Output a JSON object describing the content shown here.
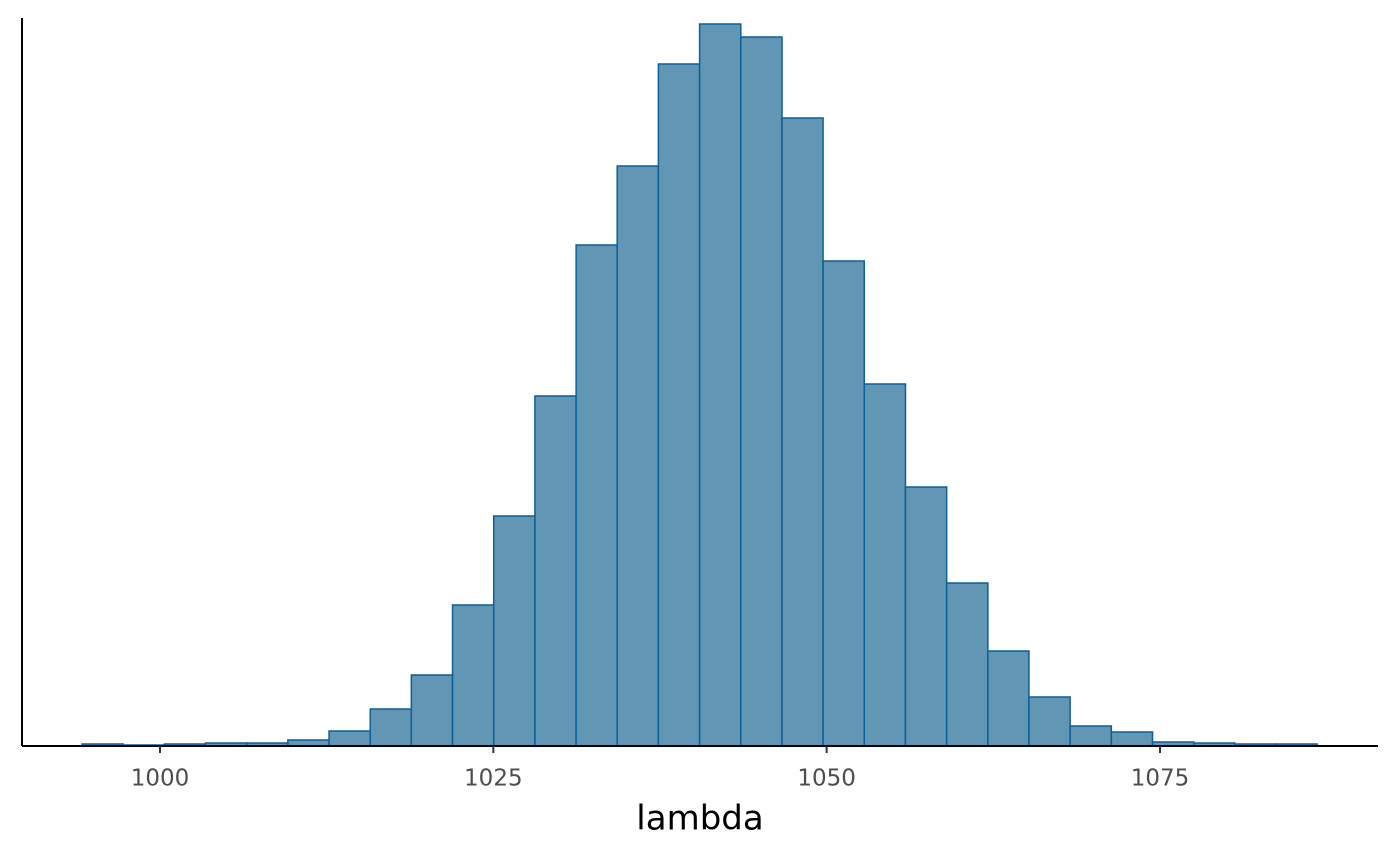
{
  "chart_data": {
    "type": "histogram",
    "x_label": "lambda",
    "bins": [
      994.15,
      997.24,
      1000.33,
      1003.41,
      1006.5,
      1009.59,
      1012.68,
      1015.77,
      1018.85,
      1021.94,
      1025.03,
      1028.12,
      1031.21,
      1034.29,
      1037.38,
      1040.47,
      1043.56,
      1046.65,
      1049.73,
      1052.82,
      1055.91,
      1059.0,
      1062.09,
      1065.17,
      1068.26,
      1071.35,
      1074.44,
      1077.53,
      1080.61,
      1083.7,
      1086.79
    ],
    "values": [
      2,
      1,
      2,
      3,
      3,
      6,
      15,
      37,
      71,
      141,
      230,
      350,
      501,
      580,
      682,
      722,
      709,
      628,
      485,
      362,
      259,
      163,
      95,
      49,
      20,
      14,
      4,
      3,
      2,
      2
    ],
    "color": "#6197b4",
    "edge_color": "#0d5f97",
    "xlim": [
      989.65,
      1091.35
    ],
    "xticks": [
      1000,
      1025,
      1050,
      1075
    ],
    "ylim": [
      0,
      728
    ],
    "grid": false
  }
}
